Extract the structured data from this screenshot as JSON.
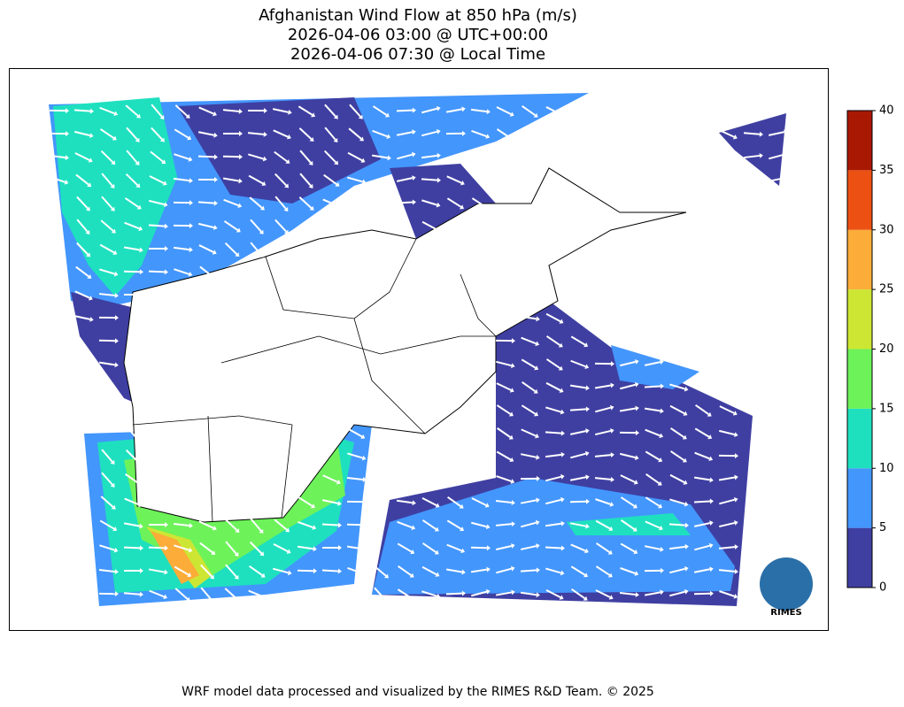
{
  "title": [
    "Afghanistan Wind Flow at 850 hPa (m/s)",
    "2026-04-06 03:00 @ UTC+00:00",
    "2026-04-06 07:30 @ Local Time"
  ],
  "colorbar": {
    "ticks": [
      0,
      5,
      10,
      15,
      20,
      25,
      30,
      35,
      40
    ],
    "colors": [
      "#3f3fa2",
      "#4396fc",
      "#1ee0bf",
      "#6df25a",
      "#cde634",
      "#fcac38",
      "#ec5113",
      "#a81802"
    ]
  },
  "footer": "WRF model data processed and visualized by the RIMES R&D Team. © 2025",
  "logo": "RIMES"
}
